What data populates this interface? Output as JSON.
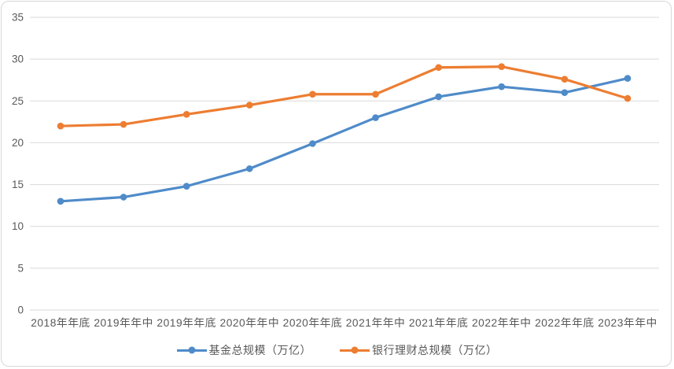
{
  "frame": {
    "border_color": "#d7d7d7",
    "background_color": "#ffffff"
  },
  "axis_style": {
    "text_color": "#595959",
    "grid_color": "#d9d9d9"
  },
  "chart_data": {
    "type": "line",
    "title": "",
    "xlabel": "",
    "ylabel": "",
    "categories": [
      "2018年年底",
      "2019年年中",
      "2019年年底",
      "2020年年中",
      "2020年年底",
      "2021年年中",
      "2021年年底",
      "2022年年中",
      "2022年年底",
      "2023年年中"
    ],
    "series": [
      {
        "name": "基金总规模（万亿）",
        "color": "#4f8bc9",
        "marker": "circle",
        "values": [
          13.0,
          13.5,
          14.8,
          16.9,
          19.9,
          23.0,
          25.5,
          26.7,
          26.0,
          27.7
        ]
      },
      {
        "name": "银行理财总规模（万亿）",
        "color": "#ed7d31",
        "marker": "circle",
        "values": [
          22.0,
          22.2,
          23.4,
          24.5,
          25.8,
          25.8,
          29.0,
          29.1,
          27.6,
          25.3
        ]
      }
    ],
    "ylim": [
      0,
      35
    ],
    "yticks": [
      0,
      5,
      10,
      15,
      20,
      25,
      30,
      35
    ],
    "grid": true,
    "legend_position": "bottom"
  }
}
